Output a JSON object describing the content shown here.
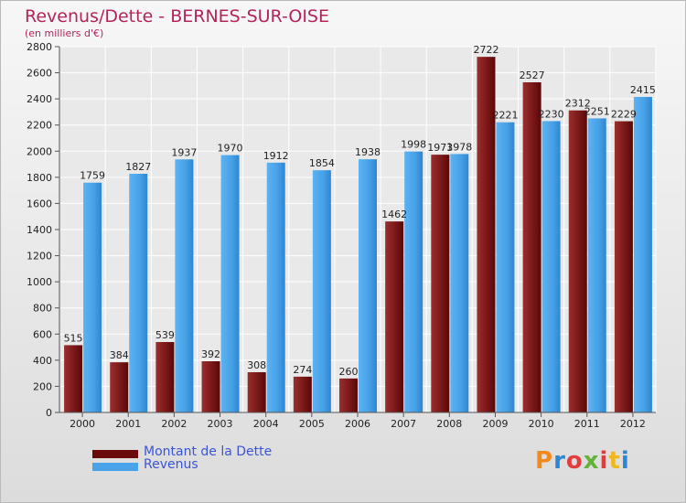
{
  "title": "Revenus/Dette - BERNES-SUR-OISE",
  "subtitle": "(en milliers d'€)",
  "colors": {
    "title": "#b4245a",
    "debt": "#7b1a1a",
    "revenue": "#4aa3e8",
    "legend_text": "#3a54d8"
  },
  "legend": [
    {
      "label": "Montant de la Dette",
      "color": "#6a0a0a"
    },
    {
      "label": "Revenus",
      "color": "#4aa3e8"
    }
  ],
  "logo": "Proxiti",
  "chart_data": {
    "type": "bar",
    "title": "Revenus/Dette - BERNES-SUR-OISE",
    "subtitle": "(en milliers d'€)",
    "categories": [
      "2000",
      "2001",
      "2002",
      "2003",
      "2004",
      "2005",
      "2006",
      "2007",
      "2008",
      "2009",
      "2010",
      "2011",
      "2012"
    ],
    "series": [
      {
        "name": "Montant de la Dette",
        "values": [
          515,
          384,
          539,
          392,
          308,
          274,
          260,
          1462,
          1973,
          2722,
          2527,
          2312,
          2229
        ]
      },
      {
        "name": "Revenus",
        "values": [
          1759,
          1827,
          1937,
          1970,
          1912,
          1854,
          1938,
          1998,
          1978,
          2221,
          2230,
          2251,
          2415
        ]
      }
    ],
    "ylim": [
      0,
      2800
    ],
    "yticks": [
      0,
      200,
      400,
      600,
      800,
      1000,
      1200,
      1400,
      1600,
      1800,
      2000,
      2200,
      2400,
      2600,
      2800
    ],
    "grid": true,
    "legend_position": "bottom-left"
  }
}
